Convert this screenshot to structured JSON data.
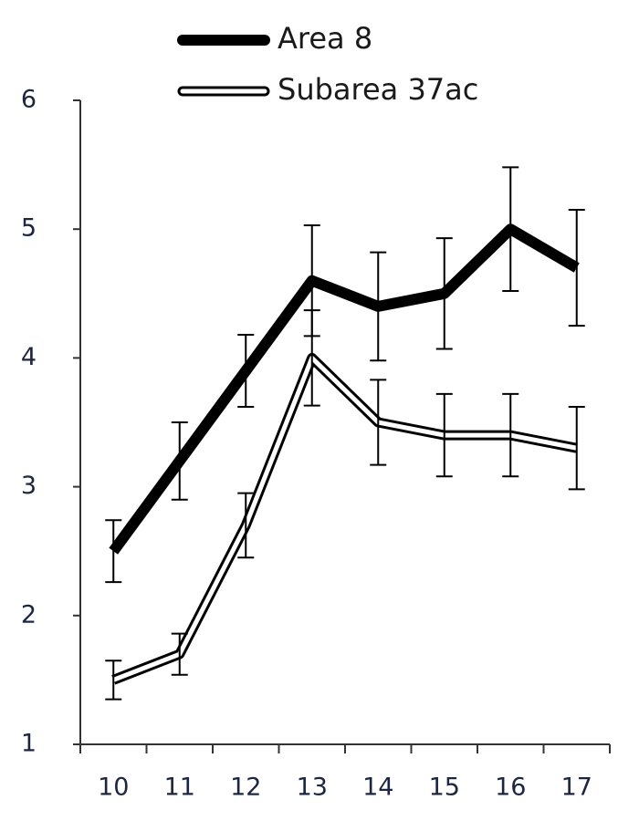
{
  "chart_data": {
    "type": "line",
    "categories": [
      "10",
      "11",
      "12",
      "13",
      "14",
      "15",
      "16",
      "17"
    ],
    "series": [
      {
        "name": "Area 8",
        "color": "#000000",
        "style": "solid",
        "values": [
          2.5,
          3.2,
          3.9,
          4.6,
          4.4,
          4.5,
          5.0,
          4.7
        ],
        "errors": [
          0.24,
          0.3,
          0.28,
          0.43,
          0.42,
          0.43,
          0.48,
          0.45
        ]
      },
      {
        "name": "Subarea 37ac",
        "color": "#000000",
        "style": "double",
        "values": [
          1.5,
          1.7,
          2.7,
          4.0,
          3.5,
          3.4,
          3.4,
          3.3
        ],
        "errors": [
          0.15,
          0.16,
          0.25,
          0.37,
          0.33,
          0.32,
          0.32,
          0.32
        ]
      }
    ],
    "ylim": [
      1,
      6
    ],
    "yticks": [
      1,
      2,
      3,
      4,
      5,
      6
    ],
    "grid": false,
    "legend": "top"
  }
}
